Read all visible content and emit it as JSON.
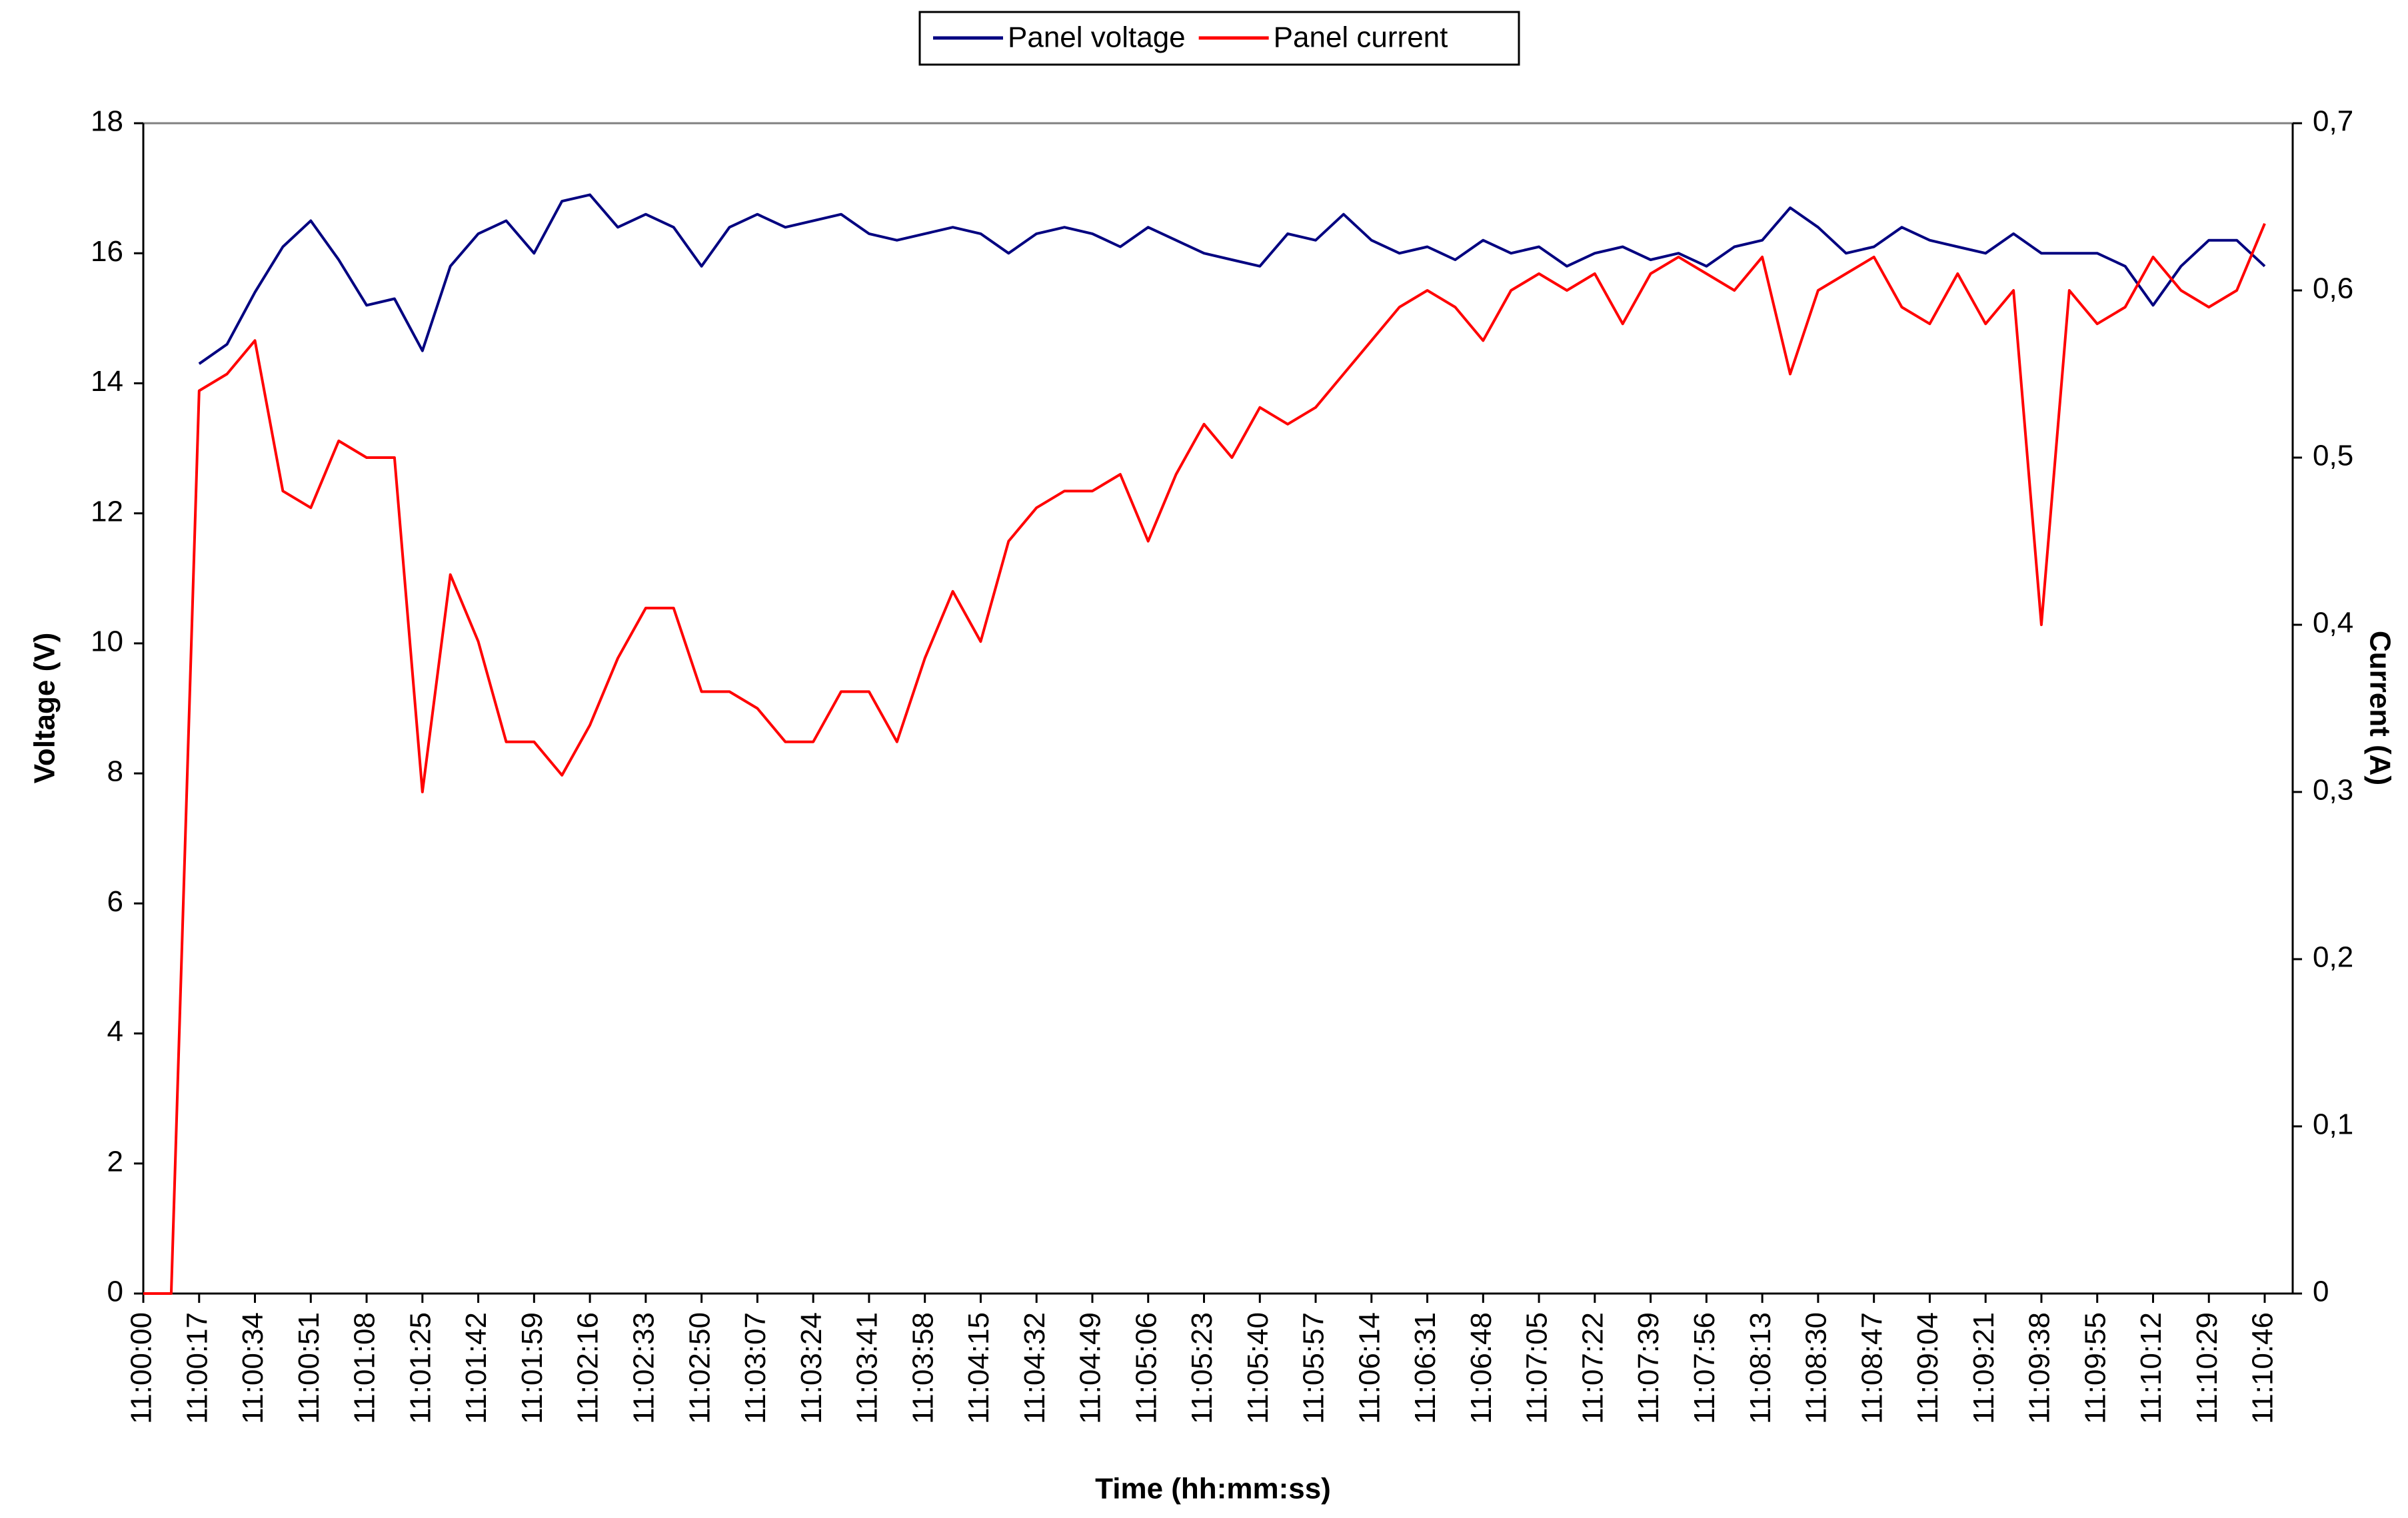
{
  "chart_data": {
    "type": "line",
    "xlabel": "Time (hh:mm:ss)",
    "ylabel": "Voltage (V)",
    "y2label": "Current (A)",
    "categories": [
      "11:00:00",
      null,
      "11:00:17",
      null,
      "11:00:34",
      null,
      "11:00:51",
      null,
      "11:01:08",
      null,
      "11:01:25",
      null,
      "11:01:42",
      null,
      "11:01:59",
      null,
      "11:02:16",
      null,
      "11:02:33",
      null,
      "11:02:50",
      null,
      "11:03:07",
      null,
      "11:03:24",
      null,
      "11:03:41",
      null,
      "11:03:58",
      null,
      "11:04:15",
      null,
      "11:04:32",
      null,
      "11:04:49",
      null,
      "11:05:06",
      null,
      "11:05:23",
      null,
      "11:05:40",
      null,
      "11:05:57",
      null,
      "11:06:14",
      null,
      "11:06:31",
      null,
      "11:06:48",
      null,
      "11:07:05",
      null,
      "11:07:22",
      null,
      "11:07:39",
      null,
      "11:07:56",
      null,
      "11:08:13",
      null,
      "11:08:30",
      null,
      "11:08:47",
      null,
      "11:09:04",
      null,
      "11:09:21",
      null,
      "11:09:38",
      null,
      "11:09:55",
      null,
      "11:10:12",
      null,
      "11:10:29",
      null,
      "11:10:46"
    ],
    "series": [
      {
        "name": "Panel voltage",
        "color": "#000080",
        "axis": "y",
        "values": [
          null,
          null,
          14.3,
          14.6,
          15.4,
          16.1,
          16.5,
          15.9,
          15.2,
          15.3,
          14.5,
          15.8,
          16.3,
          16.5,
          16.0,
          16.8,
          16.9,
          16.4,
          16.6,
          16.4,
          15.8,
          16.4,
          16.6,
          16.4,
          16.5,
          16.6,
          16.3,
          16.2,
          16.3,
          16.4,
          16.3,
          16.0,
          16.3,
          16.4,
          16.3,
          16.1,
          16.4,
          16.2,
          16.0,
          15.9,
          15.8,
          16.3,
          16.2,
          16.6,
          16.2,
          16.0,
          16.1,
          15.9,
          16.2,
          16.0,
          16.1,
          15.8,
          16.0,
          16.1,
          15.9,
          16.0,
          15.8,
          16.1,
          16.2,
          16.7,
          16.4,
          16.0,
          16.1,
          16.4,
          16.2,
          16.1,
          16.0,
          16.3,
          16.0,
          16.0,
          16.0,
          15.8,
          15.2,
          15.8,
          16.2,
          16.2,
          15.8
        ]
      },
      {
        "name": "Panel current",
        "color": "#ff0000",
        "axis": "y2",
        "values": [
          0,
          0,
          0.54,
          0.55,
          0.57,
          0.48,
          0.47,
          0.51,
          0.5,
          0.5,
          0.3,
          0.43,
          0.39,
          0.33,
          0.33,
          0.31,
          0.34,
          0.38,
          0.41,
          0.41,
          0.36,
          0.36,
          0.35,
          0.33,
          0.33,
          0.36,
          0.36,
          0.33,
          0.38,
          0.42,
          0.39,
          0.45,
          0.47,
          0.48,
          0.48,
          0.49,
          0.45,
          0.49,
          0.52,
          0.5,
          0.53,
          0.52,
          0.53,
          0.55,
          0.57,
          0.59,
          0.6,
          0.59,
          0.57,
          0.6,
          0.61,
          0.6,
          0.61,
          0.58,
          0.61,
          0.62,
          0.61,
          0.6,
          0.62,
          0.55,
          0.6,
          0.61,
          0.62,
          0.59,
          0.58,
          0.61,
          0.58,
          0.6,
          0.4,
          0.6,
          0.58,
          0.59,
          0.62,
          0.6,
          0.59,
          0.6,
          0.64
        ]
      }
    ],
    "ylim": [
      0,
      18
    ],
    "yticks": [
      0,
      2,
      4,
      6,
      8,
      10,
      12,
      14,
      16,
      18
    ],
    "y2lim": [
      0,
      0.7
    ],
    "y2ticks": [
      0,
      {
        "value": 0.1,
        "label": "0,1"
      },
      {
        "value": 0.2,
        "label": "0,2"
      },
      {
        "value": 0.3,
        "label": "0,3"
      },
      {
        "value": 0.4,
        "label": "0,4"
      },
      {
        "value": 0.5,
        "label": "0,5"
      },
      {
        "value": 0.6,
        "label": "0,6"
      },
      {
        "value": 0.7,
        "label": "0,7"
      }
    ],
    "grid": false,
    "legend": "top"
  }
}
